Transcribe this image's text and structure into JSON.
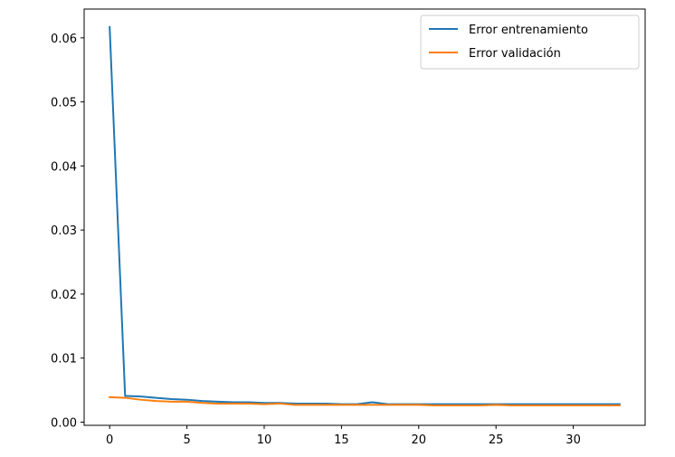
{
  "chart_data": {
    "type": "line",
    "title": "",
    "xlabel": "",
    "ylabel": "",
    "xlim": [
      -1.65,
      34.65
    ],
    "ylim": [
      -0.0005,
      0.0645
    ],
    "xticks": [
      0,
      5,
      10,
      15,
      20,
      25,
      30
    ],
    "xtick_labels": [
      "0",
      "5",
      "10",
      "15",
      "20",
      "25",
      "30"
    ],
    "yticks": [
      0.0,
      0.01,
      0.02,
      0.03,
      0.04,
      0.05,
      0.06
    ],
    "ytick_labels": [
      "0.00",
      "0.01",
      "0.02",
      "0.03",
      "0.04",
      "0.05",
      "0.06"
    ],
    "grid": false,
    "legend_position": "top-right",
    "x": [
      0,
      1,
      2,
      3,
      4,
      5,
      6,
      7,
      8,
      9,
      10,
      11,
      12,
      13,
      14,
      15,
      16,
      17,
      18,
      19,
      20,
      21,
      22,
      23,
      24,
      25,
      26,
      27,
      28,
      29,
      30,
      31,
      32,
      33
    ],
    "series": [
      {
        "name": "Error entrenamiento",
        "color": "#1f77b4",
        "values": [
          0.0617,
          0.0041,
          0.004,
          0.0038,
          0.0036,
          0.0035,
          0.0033,
          0.0032,
          0.0031,
          0.0031,
          0.003,
          0.003,
          0.0029,
          0.0029,
          0.0029,
          0.0028,
          0.0028,
          0.0031,
          0.0028,
          0.0028,
          0.0028,
          0.0028,
          0.0028,
          0.0028,
          0.0028,
          0.0028,
          0.0028,
          0.0028,
          0.0028,
          0.0028,
          0.0028,
          0.0028,
          0.0028,
          0.0028
        ]
      },
      {
        "name": "Error validación",
        "color": "#ff7f0e",
        "values": [
          0.0039,
          0.0038,
          0.0035,
          0.0033,
          0.0032,
          0.0032,
          0.003,
          0.0029,
          0.0029,
          0.0029,
          0.0028,
          0.0029,
          0.0027,
          0.0027,
          0.0027,
          0.0027,
          0.0027,
          0.0027,
          0.0027,
          0.0027,
          0.0027,
          0.0026,
          0.0026,
          0.0026,
          0.0026,
          0.0027,
          0.0026,
          0.0026,
          0.0026,
          0.0026,
          0.0026,
          0.0026,
          0.0026,
          0.0026
        ]
      }
    ]
  }
}
